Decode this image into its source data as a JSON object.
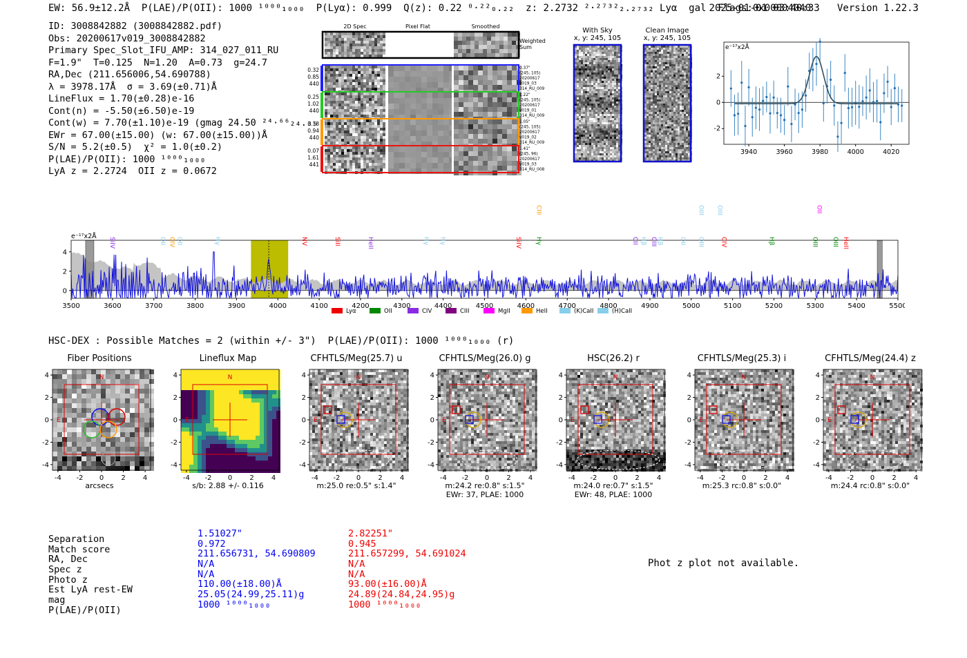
{
  "header": {
    "line": "EW: 56.9±12.2Å  P(LAE)/P(OII): 1000 ¹⁰⁰⁰₁₀₀₀  P(Lyα): 0.999  Q(z): 0.22 ⁰·²²₀.₂₂  z: 2.2732 ²·²⁷³²₂.₂₇₃₂ Lyα  gal  Flags:0x00004040",
    "datetime": "2025-01-01 03:40:33",
    "version": "Version 1.22.3"
  },
  "info": {
    "lines": [
      "ID: 3008842882 (3008842882.pdf)",
      "Obs: 20200617v019_3008842882",
      "Primary Spec_Slot_IFU_AMP: 314_027_011_RU",
      "F=1.9\"  T=0.125  N=1.20  A=0.73  g=24.7",
      "RA,Dec (211.656006,54.690788)",
      "λ = 3978.17Å  σ = 3.69(±0.71)Å",
      "LineFlux = 1.70(±0.28)e-16",
      "Cont(n) = -5.50(±6.50)e-19",
      "Cont(w) = 7.70(±1.10)e-19 (gmag 24.50 ²⁴·⁶⁶₂₄.₃₅ *)",
      "EWr = 67.00(±15.00) (w: 67.00(±15.00))Å",
      "S/N = 5.2(±0.5)  χ² = 1.0(±0.2)",
      "P(LAE)/P(OII): 1000 ¹⁰⁰⁰₁₀₀₀",
      "LyA z = 2.2724  OII z = 0.0672"
    ]
  },
  "spec_panels": {
    "col_titles": [
      "2D Spec",
      "Pixel Flat",
      "Smoothed"
    ],
    "weighted_label": "Weighted Sum",
    "rows": [
      {
        "left": [
          "0.32",
          "0.85",
          "440"
        ],
        "right": [
          "0.37\"",
          "(245, 105)",
          "20200617",
          "v019_03",
          "314_RU_009"
        ],
        "color": "#1f1fff"
      },
      {
        "left": [
          "0.25",
          "1.02",
          "440"
        ],
        "right": [
          "1.22\"",
          "(245, 105)",
          "20200617",
          "v019_01",
          "314_RU_009"
        ],
        "color": "#22cc22"
      },
      {
        "left": [
          "0.18",
          "0.94",
          "440"
        ],
        "right": [
          "1.05\"",
          "(245, 105)",
          "20200617",
          "v019_02",
          "314_RU_009"
        ],
        "color": "#ff9900"
      },
      {
        "left": [
          "0.07",
          "1.61",
          "441"
        ],
        "right": [
          "1.41\"",
          "(245, 96)",
          "20200617",
          "v019_03",
          "314_RU_008"
        ],
        "color": "#ee1111"
      }
    ]
  },
  "sky_panels": {
    "with_sky_title": "With Sky",
    "with_sky_coords": "x, y: 245, 105",
    "clean_title": "Clean Image",
    "clean_coords": "x, y: 245, 105"
  },
  "mini_chart": {
    "unit_label": "e⁻¹⁷x2Å",
    "x_ticks": [
      "3940",
      "3960",
      "3980",
      "4000",
      "4020"
    ],
    "y_ticks": [
      "-2",
      "0",
      "2"
    ]
  },
  "chart_data": {
    "type": "line",
    "title": "",
    "xlabel": "",
    "ylabel": "e⁻¹⁷x2Å",
    "xlim": [
      3500,
      5500
    ],
    "ylim": [
      -0.8,
      5.2
    ],
    "x_ticks": [
      3500,
      3600,
      3700,
      3800,
      3900,
      4000,
      4100,
      4200,
      4300,
      4400,
      4500,
      4600,
      4700,
      4800,
      4900,
      5000,
      5100,
      5200,
      5300,
      5400,
      5500
    ],
    "y_ticks": [
      0,
      2,
      4
    ],
    "highlight_region": [
      3935,
      4025
    ],
    "line_center": 3978,
    "masked_regions": [
      [
        3535,
        3555
      ],
      [
        5450,
        5462
      ]
    ],
    "series": [
      {
        "name": "flux",
        "color": "#1010dd",
        "description": "noisy spectrum, peak ~3.7 at 3978Å"
      },
      {
        "name": "error",
        "color": "#bbbbbb",
        "description": "grey error band, ~4 at blue end falling to ~1"
      }
    ],
    "line_markers": [
      {
        "label": "SiIV",
        "x": 3590,
        "color": "#8a2be2"
      },
      {
        "label": "OII",
        "x": 3712,
        "color": "#87ceeb"
      },
      {
        "label": "CIV",
        "x": 3735,
        "color": "#ff9900"
      },
      {
        "label": "OII",
        "x": 3753,
        "color": "#87ceeb"
      },
      {
        "label": "Hγ",
        "x": 3845,
        "color": "#87ceeb"
      },
      {
        "label": "NV",
        "x": 4055,
        "color": "#ff0000"
      },
      {
        "label": "SiII",
        "x": 4135,
        "color": "#ff0000"
      },
      {
        "label": "HeII",
        "x": 4215,
        "color": "#8a2be2"
      },
      {
        "label": "Hγ",
        "x": 4350,
        "color": "#87ceeb"
      },
      {
        "label": "Hγ",
        "x": 4390,
        "color": "#87ceeb"
      },
      {
        "label": "SiIV",
        "x": 4573,
        "color": "#ff0000"
      },
      {
        "label": "CIII",
        "x": 4622,
        "color": "#ff9900",
        "high": true
      },
      {
        "label": "Hγ",
        "x": 4622,
        "color": "#008800"
      },
      {
        "label": "CII",
        "x": 4855,
        "color": "#8a2be2"
      },
      {
        "label": "Hβ",
        "x": 4875,
        "color": "#87ceeb"
      },
      {
        "label": "CIII",
        "x": 4900,
        "color": "#8a2be2"
      },
      {
        "label": "Hβ",
        "x": 4915,
        "color": "#87ceeb"
      },
      {
        "label": "OII",
        "x": 4970,
        "color": "#87ceeb"
      },
      {
        "label": "OIII",
        "x": 5015,
        "color": "#87ceeb"
      },
      {
        "label": "OIII",
        "x": 5015,
        "color": "#87ceeb",
        "high": true
      },
      {
        "label": "CIV",
        "x": 5070,
        "color": "#ff0000"
      },
      {
        "label": "OIII",
        "x": 5060,
        "color": "#87ceeb",
        "high": true
      },
      {
        "label": "Hβ",
        "x": 5185,
        "color": "#008800"
      },
      {
        "label": "OIII",
        "x": 5290,
        "color": "#008800"
      },
      {
        "label": "OII",
        "x": 5300,
        "color": "#ff00ff",
        "high": true
      },
      {
        "label": "OIII",
        "x": 5340,
        "color": "#008800"
      },
      {
        "label": "HeII",
        "x": 5365,
        "color": "#ff0000"
      }
    ],
    "legend": [
      {
        "label": "Lyα",
        "color": "#ee0000"
      },
      {
        "label": "OII",
        "color": "#008800"
      },
      {
        "label": "CIV",
        "color": "#8a2be2"
      },
      {
        "label": "CIII",
        "color": "#800080"
      },
      {
        "label": "MgII",
        "color": "#ff00ff"
      },
      {
        "label": "HeII",
        "color": "#ff9900"
      },
      {
        "label": "(K)CaII",
        "color": "#87ceeb"
      },
      {
        "label": "(H)CaII",
        "color": "#87ceeb"
      }
    ]
  },
  "hsc": {
    "title": "HSC-DEX : Possible Matches = 2 (within +/- 3\")  P(LAE)/P(OII): 1000 ¹⁰⁰⁰₁₀₀₀ (r)",
    "cutouts": [
      {
        "title": "Fiber Positions",
        "caption1": "arcsecs",
        "caption2": "",
        "kind": "fiber"
      },
      {
        "title": "Lineflux Map",
        "caption1": "s/b: 2.88 +/- 0.116",
        "caption2": "",
        "kind": "flux"
      },
      {
        "title": "CFHTLS/Meg(25.7) u",
        "caption1": "m:25.0  re:0.5\"  s:1.4\"",
        "caption2": "",
        "kind": "img"
      },
      {
        "title": "CFHTLS/Meg(26.0) g",
        "caption1": "m:24.2  re:0.8\"  s:1.5\"",
        "caption2": "EWr: 37, PLAE: 1000",
        "kind": "img"
      },
      {
        "title": "HSC(26.2) r",
        "caption1": "m:24.0  re:0.7\"  s:1.5\"",
        "caption2": "EWr: 48, PLAE: 1000",
        "kind": "img"
      },
      {
        "title": "CFHTLS/Meg(25.3) i",
        "caption1": "m:25.3 rc:0.8\"  s:0.0\"",
        "caption2": "",
        "kind": "img"
      },
      {
        "title": "CFHTLS/Meg(24.4) z",
        "caption1": "m:24.4 rc:0.8\"  s:0.0\"",
        "caption2": "",
        "kind": "img"
      }
    ],
    "axis_ticks": [
      "-4",
      "-2",
      "0",
      "2",
      "4"
    ],
    "north_label": "N",
    "east_label": "E"
  },
  "match_table": {
    "labels": [
      "Separation",
      "Match score",
      "RA, Dec",
      "Spec z",
      "Photo z",
      "Est LyA rest-EW",
      "mag",
      "P(LAE)/P(OII)"
    ],
    "blue": [
      "1.51027\"",
      "0.972",
      "211.656731, 54.690809",
      "N/A",
      "N/A",
      "110.00(±18.00)Å",
      "25.05(24.99,25.11)g",
      "1000 ¹⁰⁰⁰₁₀₀₀"
    ],
    "red": [
      "2.82251\"",
      "0.945",
      "211.657299, 54.691024",
      "N/A",
      "N/A",
      "93.00(±16.00)Å",
      "24.89(24.84,24.95)g",
      "1000 ¹⁰⁰⁰₁₀₀₀"
    ],
    "blue_color": "#0000ee",
    "red_color": "#ee0000"
  },
  "photz": {
    "message": "Phot z plot not available."
  }
}
